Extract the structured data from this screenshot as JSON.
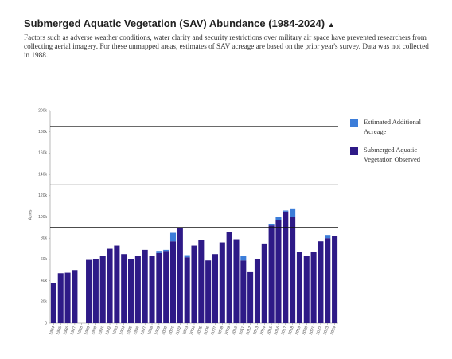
{
  "title": "Submerged Aquatic Vegetation (SAV) Abundance (1984-2024)",
  "description": "Factors such as adverse weather conditions, water clarity and security restrictions over military air space have prevented researchers from collecting aerial imagery. For these unmapped areas, estimates of SAV acreage are based on the prior year's survey. Data was not collected in 1988.",
  "chart_data": {
    "type": "stacked-bar",
    "y_label": "Acres",
    "categories": [
      "1984",
      "1985",
      "1986",
      "1987",
      "1988",
      "1989",
      "1990",
      "1991",
      "1992",
      "1993",
      "1994",
      "1995",
      "1996",
      "1997",
      "1998",
      "1999",
      "2000",
      "2001",
      "2002",
      "2003",
      "2004",
      "2005",
      "2006",
      "2007",
      "2008",
      "2009",
      "2010",
      "2011",
      "2012",
      "2013",
      "2014",
      "2015",
      "2016",
      "2017",
      "2018",
      "2019",
      "2020",
      "2021",
      "2022",
      "2023",
      "2024"
    ],
    "series": [
      {
        "name": "Submerged Aquatic Vegetation Observed",
        "color": "#2e1a87",
        "values": [
          38000,
          47000,
          47500,
          50000,
          null,
          59500,
          60000,
          63000,
          70000,
          73000,
          65000,
          60000,
          63000,
          69000,
          63000,
          66000,
          68000,
          77000,
          90000,
          62000,
          73000,
          78000,
          59000,
          65000,
          76000,
          86000,
          79000,
          59000,
          48000,
          60000,
          75000,
          92000,
          97000,
          105000,
          100000,
          67000,
          63000,
          67000,
          77000,
          80000,
          82000
        ]
      },
      {
        "name": "Estimated Additional Acreage",
        "color": "#3c7dd9",
        "values": [
          null,
          null,
          null,
          null,
          null,
          null,
          null,
          null,
          null,
          null,
          null,
          null,
          null,
          null,
          null,
          2000,
          1000,
          8000,
          null,
          2000,
          null,
          null,
          null,
          null,
          null,
          null,
          null,
          4000,
          null,
          null,
          null,
          1000,
          3000,
          1000,
          8000,
          null,
          null,
          null,
          null,
          3000,
          null
        ]
      }
    ],
    "reference_lines": [
      185000,
      130000,
      90000
    ],
    "ylim": [
      0,
      200000
    ],
    "yticks": [
      0,
      {
        "value": 20000,
        "label": "20k"
      },
      {
        "value": 40000,
        "label": "40k"
      },
      {
        "value": 60000,
        "label": "60k"
      },
      {
        "value": 80000,
        "label": "80k"
      },
      {
        "value": 100000,
        "label": "100k"
      },
      {
        "value": 120000,
        "label": "120k"
      },
      {
        "value": 140000,
        "label": "140k"
      },
      {
        "value": 160000,
        "label": "160k"
      },
      {
        "value": 180000,
        "label": "180k"
      },
      {
        "value": 200000,
        "label": "200k"
      }
    ],
    "legend": "right"
  }
}
